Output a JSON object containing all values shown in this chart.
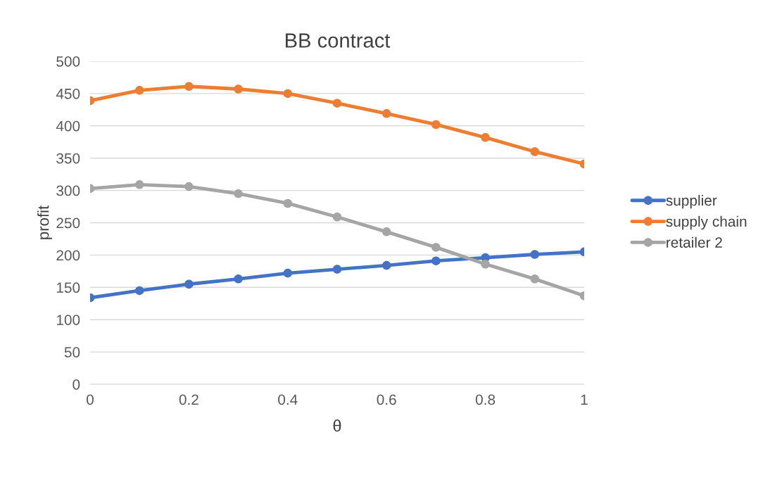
{
  "chart_data": {
    "type": "line",
    "title": "BB contract",
    "xlabel": "θ",
    "ylabel": "profit",
    "x": [
      0,
      0.1,
      0.2,
      0.3,
      0.4,
      0.5,
      0.6,
      0.7,
      0.8,
      0.9,
      1
    ],
    "series": [
      {
        "name": "supplier",
        "color": "#4472c4",
        "values": [
          134,
          145,
          155,
          163,
          172,
          178,
          184,
          191,
          196,
          201,
          205
        ]
      },
      {
        "name": "supply chain",
        "color": "#ed7d31",
        "values": [
          439,
          455,
          461,
          457,
          450,
          435,
          419,
          402,
          382,
          360,
          341
        ]
      },
      {
        "name": "retailer 2",
        "color": "#a5a5a5",
        "values": [
          303,
          309,
          306,
          295,
          280,
          259,
          236,
          212,
          186,
          163,
          137
        ]
      }
    ],
    "xlim": [
      0,
      1
    ],
    "xticks": [
      0,
      0.2,
      0.4,
      0.6,
      0.8,
      1
    ],
    "ylim": [
      0,
      500
    ],
    "yticks": [
      0,
      50,
      100,
      150,
      200,
      250,
      300,
      350,
      400,
      450,
      500
    ],
    "grid": "y",
    "legend": "right",
    "marker": "circle",
    "line_style": "solid"
  }
}
